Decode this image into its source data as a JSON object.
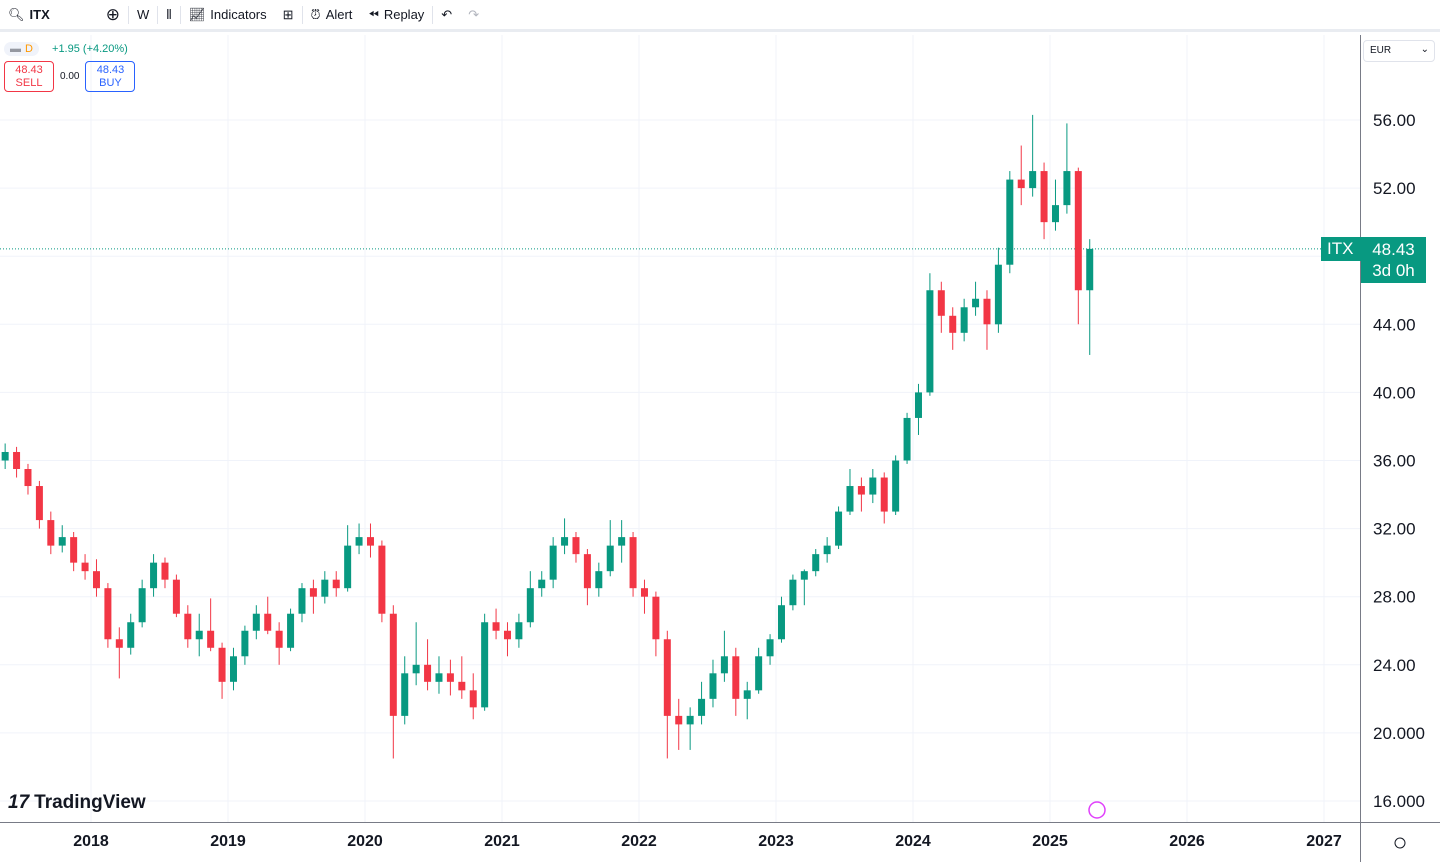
{
  "toolbar": {
    "symbol": "ITX",
    "interval": "W",
    "indicators": "Indicators",
    "alert": "Alert",
    "replay": "Replay"
  },
  "legend": {
    "interval": "D",
    "change": "+1.95 (+4.20%)",
    "sell_price": "48.43",
    "sell_label": "SELL",
    "spread": "0.00",
    "buy_price": "48.43",
    "buy_label": "BUY"
  },
  "currency": "EUR",
  "last_price": {
    "symbol": "ITX",
    "price": "48.43",
    "countdown": "3d 0h"
  },
  "brand": "TradingView",
  "colors": {
    "up": "#089981",
    "down": "#f23645",
    "grid": "#f0f3fa"
  },
  "chart_data": {
    "type": "candlestick",
    "y_ticks": [
      "56.00",
      "52.00",
      "48.00",
      "44.00",
      "40.00",
      "36.00",
      "32.00",
      "28.00",
      "24.00",
      "20.000",
      "16.000"
    ],
    "y_tick_values": [
      56,
      52,
      48,
      44,
      40,
      36,
      32,
      28,
      24,
      20,
      16
    ],
    "x_ticks": [
      "2018",
      "2019",
      "2020",
      "2021",
      "2022",
      "2023",
      "2024",
      "2025",
      "2026",
      "2027"
    ],
    "ylim": [
      16,
      56
    ],
    "grid": true,
    "last": 48.43,
    "candles": [
      [
        "2017-05",
        36.0,
        37.0,
        35.5,
        36.5
      ],
      [
        "2017-06",
        36.5,
        36.8,
        35.0,
        35.5
      ],
      [
        "2017-07",
        35.5,
        35.8,
        34.0,
        34.5
      ],
      [
        "2017-08",
        34.5,
        34.8,
        32.0,
        32.5
      ],
      [
        "2017-09",
        32.5,
        33.0,
        30.5,
        31.0
      ],
      [
        "2017-10",
        31.0,
        32.2,
        30.6,
        31.5
      ],
      [
        "2017-11",
        31.5,
        31.8,
        29.5,
        30.0
      ],
      [
        "2017-12",
        30.0,
        30.5,
        29.0,
        29.5
      ],
      [
        "2018-01",
        29.5,
        30.2,
        28.0,
        28.5
      ],
      [
        "2018-02",
        28.5,
        28.8,
        25.0,
        25.5
      ],
      [
        "2018-03",
        25.5,
        26.2,
        23.2,
        25.0
      ],
      [
        "2018-04",
        25.0,
        27.0,
        24.6,
        26.5
      ],
      [
        "2018-05",
        26.5,
        29.0,
        26.2,
        28.5
      ],
      [
        "2018-06",
        28.5,
        30.5,
        28.0,
        30.0
      ],
      [
        "2018-07",
        30.0,
        30.3,
        28.5,
        29.0
      ],
      [
        "2018-08",
        29.0,
        29.3,
        26.8,
        27.0
      ],
      [
        "2018-09",
        27.0,
        27.5,
        25.0,
        25.5
      ],
      [
        "2018-10",
        25.5,
        27.0,
        24.5,
        26.0
      ],
      [
        "2018-11",
        26.0,
        27.9,
        24.8,
        25.0
      ],
      [
        "2018-12",
        25.0,
        25.3,
        22.0,
        23.0
      ],
      [
        "2019-01",
        23.0,
        25.0,
        22.5,
        24.5
      ],
      [
        "2019-02",
        24.5,
        26.3,
        24.0,
        26.0
      ],
      [
        "2019-03",
        26.0,
        27.5,
        25.5,
        27.0
      ],
      [
        "2019-04",
        27.0,
        28.0,
        25.8,
        26.0
      ],
      [
        "2019-05",
        26.0,
        26.5,
        24.0,
        25.0
      ],
      [
        "2019-06",
        25.0,
        27.3,
        24.8,
        27.0
      ],
      [
        "2019-07",
        27.0,
        28.8,
        26.5,
        28.5
      ],
      [
        "2019-08",
        28.5,
        29.0,
        27.0,
        28.0
      ],
      [
        "2019-09",
        28.0,
        29.5,
        27.6,
        29.0
      ],
      [
        "2019-10",
        29.0,
        29.5,
        28.0,
        28.5
      ],
      [
        "2019-11",
        28.5,
        32.2,
        28.3,
        31.0
      ],
      [
        "2019-12",
        31.0,
        32.3,
        30.5,
        31.5
      ],
      [
        "2020-01",
        31.5,
        32.3,
        30.3,
        31.0
      ],
      [
        "2020-02",
        31.0,
        31.3,
        26.5,
        27.0
      ],
      [
        "2020-03",
        27.0,
        27.5,
        18.5,
        21.0
      ],
      [
        "2020-04",
        21.0,
        24.5,
        20.5,
        23.5
      ],
      [
        "2020-05",
        23.5,
        26.5,
        22.8,
        24.0
      ],
      [
        "2020-06",
        24.0,
        25.5,
        22.5,
        23.0
      ],
      [
        "2020-07",
        23.0,
        24.5,
        22.3,
        23.5
      ],
      [
        "2020-08",
        23.5,
        24.3,
        22.2,
        23.0
      ],
      [
        "2020-09",
        23.0,
        24.5,
        22.0,
        22.5
      ],
      [
        "2020-10",
        22.5,
        23.5,
        20.8,
        21.5
      ],
      [
        "2020-11",
        21.5,
        27.0,
        21.3,
        26.5
      ],
      [
        "2020-12",
        26.5,
        27.3,
        25.5,
        26.0
      ],
      [
        "2021-01",
        26.0,
        26.5,
        24.5,
        25.5
      ],
      [
        "2021-02",
        25.5,
        27.0,
        25.0,
        26.5
      ],
      [
        "2021-03",
        26.5,
        29.5,
        26.2,
        28.5
      ],
      [
        "2021-04",
        28.5,
        29.5,
        28.0,
        29.0
      ],
      [
        "2021-05",
        29.0,
        31.5,
        28.5,
        31.0
      ],
      [
        "2021-06",
        31.0,
        32.6,
        30.5,
        31.5
      ],
      [
        "2021-07",
        31.5,
        31.8,
        30.0,
        30.5
      ],
      [
        "2021-08",
        30.5,
        30.8,
        27.5,
        28.5
      ],
      [
        "2021-09",
        28.5,
        30.0,
        28.0,
        29.5
      ],
      [
        "2021-10",
        29.5,
        32.5,
        29.2,
        31.0
      ],
      [
        "2021-11",
        31.0,
        32.5,
        30.0,
        31.5
      ],
      [
        "2021-12",
        31.5,
        31.8,
        28.0,
        28.5
      ],
      [
        "2022-01",
        28.5,
        29.0,
        27.0,
        28.0
      ],
      [
        "2022-02",
        28.0,
        28.3,
        24.5,
        25.5
      ],
      [
        "2022-03",
        25.5,
        26.0,
        18.5,
        21.0
      ],
      [
        "2022-04",
        21.0,
        22.0,
        19.0,
        20.5
      ],
      [
        "2022-05",
        20.5,
        21.5,
        19.0,
        21.0
      ],
      [
        "2022-06",
        21.0,
        23.0,
        20.5,
        22.0
      ],
      [
        "2022-07",
        22.0,
        24.3,
        21.5,
        23.5
      ],
      [
        "2022-08",
        23.5,
        26.0,
        23.0,
        24.5
      ],
      [
        "2022-09",
        24.5,
        25.0,
        21.0,
        22.0
      ],
      [
        "2022-10",
        22.0,
        23.0,
        20.8,
        22.5
      ],
      [
        "2022-11",
        22.5,
        25.0,
        22.3,
        24.5
      ],
      [
        "2022-12",
        24.5,
        25.8,
        24.0,
        25.5
      ],
      [
        "2023-01",
        25.5,
        28.0,
        25.3,
        27.5
      ],
      [
        "2023-02",
        27.5,
        29.3,
        27.2,
        29.0
      ],
      [
        "2023-03",
        29.0,
        29.6,
        27.5,
        29.5
      ],
      [
        "2023-04",
        29.5,
        30.8,
        29.2,
        30.5
      ],
      [
        "2023-05",
        30.5,
        31.5,
        30.0,
        31.0
      ],
      [
        "2023-06",
        31.0,
        33.3,
        30.8,
        33.0
      ],
      [
        "2023-07",
        33.0,
        35.5,
        32.8,
        34.5
      ],
      [
        "2023-08",
        34.5,
        35.0,
        33.0,
        34.0
      ],
      [
        "2023-09",
        34.0,
        35.5,
        33.5,
        35.0
      ],
      [
        "2023-10",
        35.0,
        35.3,
        32.3,
        33.0
      ],
      [
        "2023-11",
        33.0,
        36.3,
        32.8,
        36.0
      ],
      [
        "2023-12",
        36.0,
        38.8,
        35.8,
        38.5
      ],
      [
        "2024-01",
        38.5,
        40.5,
        37.5,
        40.0
      ],
      [
        "2024-02",
        40.0,
        47.0,
        39.8,
        46.0
      ],
      [
        "2024-03",
        46.0,
        46.5,
        43.5,
        44.5
      ],
      [
        "2024-04",
        44.5,
        45.0,
        42.5,
        43.5
      ],
      [
        "2024-05",
        43.5,
        45.5,
        43.0,
        45.0
      ],
      [
        "2024-06",
        45.0,
        46.5,
        44.5,
        45.5
      ],
      [
        "2024-07",
        45.5,
        46.0,
        42.5,
        44.0
      ],
      [
        "2024-08",
        44.0,
        48.5,
        43.5,
        47.5
      ],
      [
        "2024-09",
        47.5,
        53.0,
        47.0,
        52.5
      ],
      [
        "2024-10",
        52.5,
        54.5,
        51.0,
        52.0
      ],
      [
        "2024-11",
        52.0,
        56.3,
        51.5,
        53.0
      ],
      [
        "2024-12",
        53.0,
        53.5,
        49.0,
        50.0
      ],
      [
        "2025-01",
        50.0,
        52.5,
        49.5,
        51.0
      ],
      [
        "2025-02",
        51.0,
        55.8,
        50.5,
        53.0
      ],
      [
        "2025-03",
        53.0,
        53.2,
        44.0,
        46.0
      ],
      [
        "2025-04",
        46.0,
        49.0,
        42.2,
        48.43
      ]
    ]
  }
}
